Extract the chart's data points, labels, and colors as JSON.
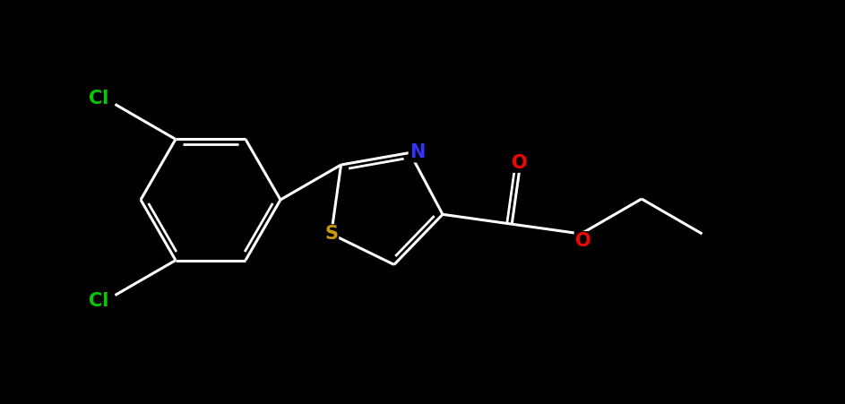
{
  "background_color": "#000000",
  "bond_color": "#ffffff",
  "atom_colors": {
    "Cl": "#00cc00",
    "N": "#3333ff",
    "S": "#cc9900",
    "O": "#ff0000",
    "C": "#ffffff"
  },
  "figsize": [
    9.43,
    4.51
  ],
  "dpi": 100,
  "lw": 2.2,
  "lw2": 2.0,
  "fs": 15
}
